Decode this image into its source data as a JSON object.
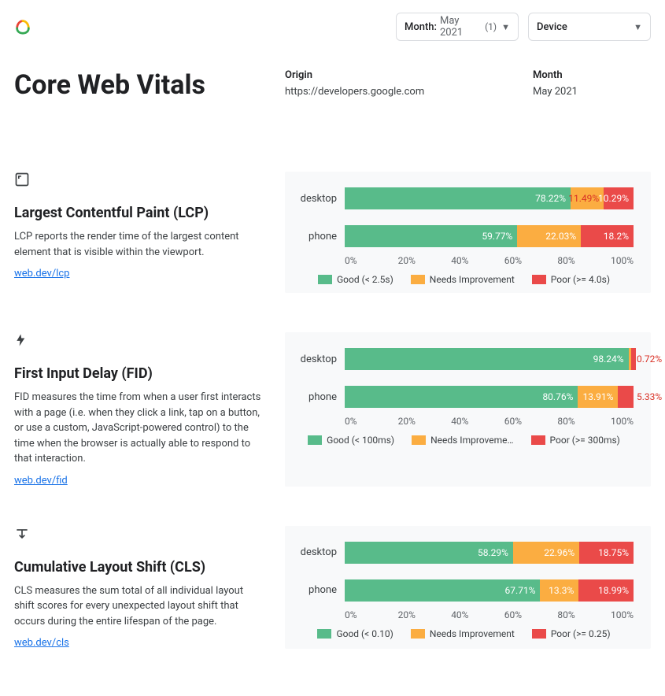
{
  "colors": {
    "good": "#58bb8a",
    "needs_improvement": "#fbad41",
    "poor": "#ea4a49",
    "chart_bg": "#f8f9fa",
    "text": "#202124",
    "muted": "#5f6368",
    "link": "#1a73e8",
    "border": "#dadce0"
  },
  "top": {
    "month_filter": {
      "label": "Month:",
      "value": "May 2021",
      "count": "(1)"
    },
    "device_filter": {
      "label": "Device"
    }
  },
  "header": {
    "title": "Core Web Vitals",
    "origin_heading": "Origin",
    "origin_value": "https://developers.google.com",
    "month_heading": "Month",
    "month_value": "May 2021"
  },
  "axis": {
    "ticks": [
      "0%",
      "20%",
      "40%",
      "60%",
      "80%",
      "100%"
    ]
  },
  "metrics": [
    {
      "id": "lcp",
      "title": "Largest Contentful Paint (LCP)",
      "description": "LCP reports the render time of the largest content element that is visible within the viewport.",
      "link_text": "web.dev/lcp",
      "legend": {
        "good": "Good (< 2.5s)",
        "ni": "Needs Improvement",
        "poor": "Poor (>= 4.0s)"
      },
      "rows": [
        {
          "category": "desktop",
          "good": 78.22,
          "ni": 11.49,
          "poor": 10.29,
          "good_label": "78.22%",
          "ni_label": "11.49%",
          "poor_label": "10.29%",
          "ni_overflow": true,
          "poor_overflow": false
        },
        {
          "category": "phone",
          "good": 59.77,
          "ni": 22.03,
          "poor": 18.2,
          "good_label": "59.77%",
          "ni_label": "22.03%",
          "poor_label": "18.2%",
          "ni_overflow": false,
          "poor_overflow": false
        }
      ]
    },
    {
      "id": "fid",
      "title": "First Input Delay (FID)",
      "description": "FID measures the time from when a user first interacts with a page (i.e. when they click a link, tap on a button, or use a custom, JavaScript-powered control) to the time when the browser is actually able to respond to that interaction.",
      "link_text": "web.dev/fid",
      "legend": {
        "good": "Good (< 100ms)",
        "ni": "Needs Improveme…",
        "poor": "Poor (>= 300ms)"
      },
      "rows": [
        {
          "category": "desktop",
          "good": 98.24,
          "ni": 1.04,
          "poor": 0.72,
          "good_label": "98.24%",
          "ni_label": "",
          "poor_label": "0.72%",
          "ni_overflow": false,
          "poor_overflow": true
        },
        {
          "category": "phone",
          "good": 80.76,
          "ni": 13.91,
          "poor": 5.33,
          "good_label": "80.76%",
          "ni_label": "13.91%",
          "poor_label": "5.33%",
          "ni_overflow": false,
          "poor_overflow": true
        }
      ]
    },
    {
      "id": "cls",
      "title": "Cumulative Layout Shift (CLS)",
      "description": "CLS measures the sum total of all individual layout shift scores for every unexpected layout shift that occurs during the entire lifespan of the page.",
      "link_text": "web.dev/cls",
      "legend": {
        "good": "Good (< 0.10)",
        "ni": "Needs Improvement",
        "poor": "Poor (>= 0.25)"
      },
      "rows": [
        {
          "category": "desktop",
          "good": 58.29,
          "ni": 22.96,
          "poor": 18.75,
          "good_label": "58.29%",
          "ni_label": "22.96%",
          "poor_label": "18.75%",
          "ni_overflow": false,
          "poor_overflow": false
        },
        {
          "category": "phone",
          "good": 67.71,
          "ni": 13.3,
          "poor": 18.99,
          "good_label": "67.71%",
          "ni_label": "13.3%",
          "poor_label": "18.99%",
          "ni_overflow": false,
          "poor_overflow": false
        }
      ]
    }
  ]
}
